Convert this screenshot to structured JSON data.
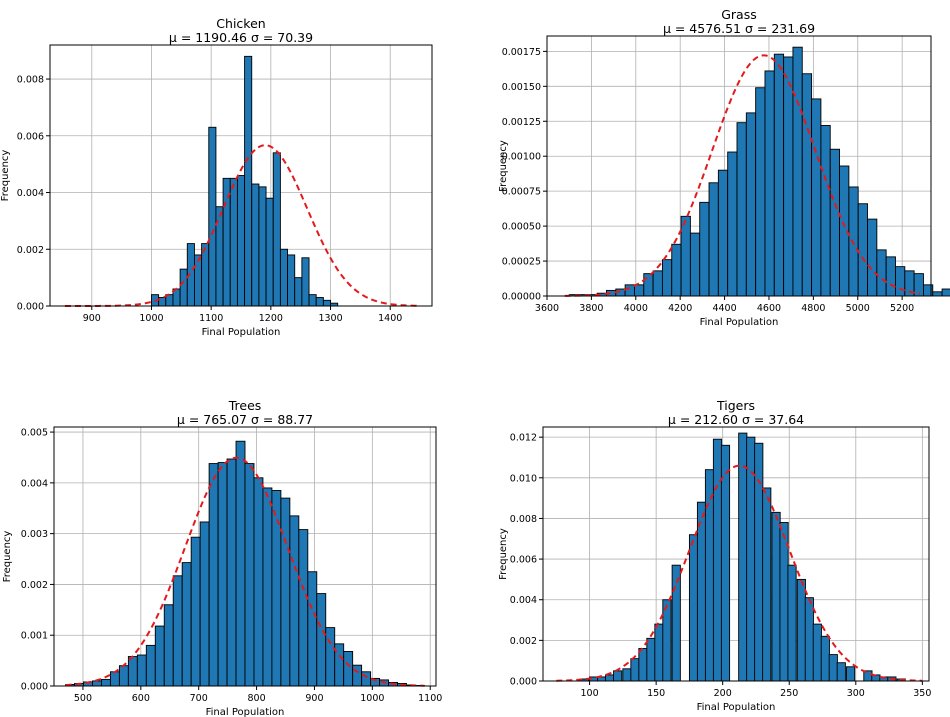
{
  "chart_data": [
    {
      "type": "bar",
      "title": "Chicken",
      "subtitle": "μ = 1190.46  σ = 70.39",
      "xlabel": "Final Population",
      "ylabel": "Frequency",
      "xlim": [
        830,
        1470
      ],
      "ylim": [
        0,
        0.0092
      ],
      "xticks": [
        900,
        1000,
        1100,
        1200,
        1300,
        1400
      ],
      "yticks": [
        0.0,
        0.002,
        0.004,
        0.006,
        0.008
      ],
      "ytick_labels": [
        "0.000",
        "0.002",
        "0.004",
        "0.006",
        "0.008"
      ],
      "bin_start": 1000,
      "bin_width": 12,
      "values": [
        0.0004,
        0.0003,
        0.0004,
        0.0006,
        0.0013,
        0.0022,
        0.0018,
        0.0022,
        0.0063,
        0.0035,
        0.0045,
        0.0045,
        0.0046,
        0.0088,
        0.0043,
        0.0042,
        0.0038,
        0.0054,
        0.002,
        0.0018,
        0.001,
        0.0017,
        0.0004,
        0.0003,
        0.0002,
        0.0001
      ],
      "fit": {
        "type": "normal",
        "mean": 1190.46,
        "std": 70.39,
        "x_range": [
          855,
          1445
        ],
        "color": "#e31a1c",
        "style": "dashed"
      },
      "bar_color": "#1f77b4",
      "grid": true
    },
    {
      "type": "bar",
      "title": "Grass",
      "subtitle": "μ = 4576.51  σ = 231.69",
      "xlabel": "Final Population",
      "ylabel": "Frequency",
      "xlim": [
        3600,
        5330
      ],
      "ylim": [
        0,
        0.00186
      ],
      "xticks": [
        3600,
        3800,
        4000,
        4200,
        4400,
        4600,
        4800,
        5000,
        5200
      ],
      "yticks": [
        0,
        0.00025,
        0.0005,
        0.00075,
        0.001,
        0.00125,
        0.0015,
        0.00175
      ],
      "ytick_labels": [
        "0.00000",
        "0.00025",
        "0.00050",
        "0.00075",
        "0.00100",
        "0.00125",
        "0.00150",
        "0.00175"
      ],
      "bin_start": 3700,
      "bin_width": 42,
      "values": [
        1e-05,
        1e-05,
        1e-05,
        2e-05,
        4e-05,
        5e-05,
        8e-05,
        8e-05,
        0.00016,
        0.00018,
        0.00026,
        0.00037,
        0.00057,
        0.00045,
        0.00067,
        0.00081,
        0.0009,
        0.00103,
        0.00124,
        0.00131,
        0.00149,
        0.00161,
        0.00173,
        0.00171,
        0.00178,
        0.00159,
        0.00141,
        0.00122,
        0.00105,
        0.00093,
        0.00078,
        0.00066,
        0.00055,
        0.00033,
        0.00028,
        0.00021,
        0.00018,
        0.00016,
        8e-05,
        3e-05,
        5e-05
      ],
      "fit": {
        "type": "normal",
        "mean": 4576.51,
        "std": 231.69,
        "x_range": [
          3680,
          5280
        ],
        "color": "#e31a1c",
        "style": "dashed"
      },
      "bar_color": "#1f77b4",
      "grid": true
    },
    {
      "type": "bar",
      "title": "Trees",
      "subtitle": "μ = 765.07  σ = 88.77",
      "xlabel": "Final Population",
      "ylabel": "Frequency",
      "xlim": [
        450,
        1110
      ],
      "ylim": [
        0,
        0.0051
      ],
      "xticks": [
        500,
        600,
        700,
        800,
        900,
        1000,
        1100
      ],
      "yticks": [
        0.0,
        0.001,
        0.002,
        0.003,
        0.004,
        0.005
      ],
      "ytick_labels": [
        "0.000",
        "0.001",
        "0.002",
        "0.003",
        "0.004",
        "0.005"
      ],
      "bin_start": 470,
      "bin_width": 15.5,
      "values": [
        3e-05,
        5e-05,
        8e-05,
        0.0001,
        0.00013,
        0.00028,
        0.0004,
        0.00058,
        0.00061,
        0.0008,
        0.00118,
        0.0016,
        0.00217,
        0.00243,
        0.00293,
        0.00323,
        0.00438,
        0.0044,
        0.00447,
        0.00482,
        0.00438,
        0.0041,
        0.0039,
        0.00385,
        0.0037,
        0.00335,
        0.00308,
        0.00225,
        0.00182,
        0.00115,
        0.00083,
        0.00068,
        0.00041,
        0.00028,
        0.00015,
        0.00012,
        7e-05,
        5e-05,
        2e-05,
        1e-05
      ],
      "fit": {
        "type": "normal",
        "mean": 765.07,
        "std": 88.77,
        "x_range": [
          470,
          1090
        ],
        "color": "#e31a1c",
        "style": "dashed"
      },
      "bar_color": "#1f77b4",
      "grid": true
    },
    {
      "type": "bar",
      "title": "Tigers",
      "subtitle": "μ = 212.60  σ = 37.64",
      "xlabel": "Final Population",
      "ylabel": "Frequency",
      "xlim": [
        65,
        355
      ],
      "ylim": [
        0,
        0.0125
      ],
      "xticks": [
        100,
        150,
        200,
        250,
        300,
        350
      ],
      "yticks": [
        0.0,
        0.002,
        0.004,
        0.006,
        0.008,
        0.01,
        0.012
      ],
      "ytick_labels": [
        "0.000",
        "0.002",
        "0.004",
        "0.006",
        "0.008",
        "0.010",
        "0.012"
      ],
      "bars": [
        [
          93,
          0.0001
        ],
        [
          100,
          0.0002
        ],
        [
          106,
          0.0002
        ],
        [
          112,
          0.0003
        ],
        [
          118,
          0.0005
        ],
        [
          125,
          0.0006
        ],
        [
          131,
          0.0011
        ],
        [
          137,
          0.0016
        ],
        [
          143,
          0.0021
        ],
        [
          149,
          0.0028
        ],
        [
          155,
          0.004
        ],
        [
          162,
          0.0057
        ],
        [
          175,
          0.0072
        ],
        [
          181,
          0.0088
        ],
        [
          187,
          0.0104
        ],
        [
          193,
          0.0119
        ],
        [
          199,
          0.0116
        ],
        [
          212,
          0.0122
        ],
        [
          218,
          0.012
        ],
        [
          224,
          0.0117
        ],
        [
          230,
          0.0095
        ],
        [
          237,
          0.0083
        ],
        [
          243,
          0.0078
        ],
        [
          249,
          0.0057
        ],
        [
          256,
          0.005
        ],
        [
          262,
          0.0041
        ],
        [
          268,
          0.0028
        ],
        [
          274,
          0.0022
        ],
        [
          280,
          0.0013
        ],
        [
          286,
          0.0009
        ],
        [
          293,
          0.0007
        ],
        [
          306,
          0.0005
        ],
        [
          312,
          0.0003
        ],
        [
          318,
          0.0002
        ],
        [
          324,
          0.0002
        ],
        [
          331,
          0.0001
        ]
      ],
      "bin_width": 6.2,
      "fit": {
        "type": "normal",
        "mean": 212.6,
        "std": 37.64,
        "x_range": [
          75,
          350
        ],
        "color": "#e31a1c",
        "style": "dashed"
      },
      "bar_color": "#1f77b4",
      "grid": true
    }
  ]
}
